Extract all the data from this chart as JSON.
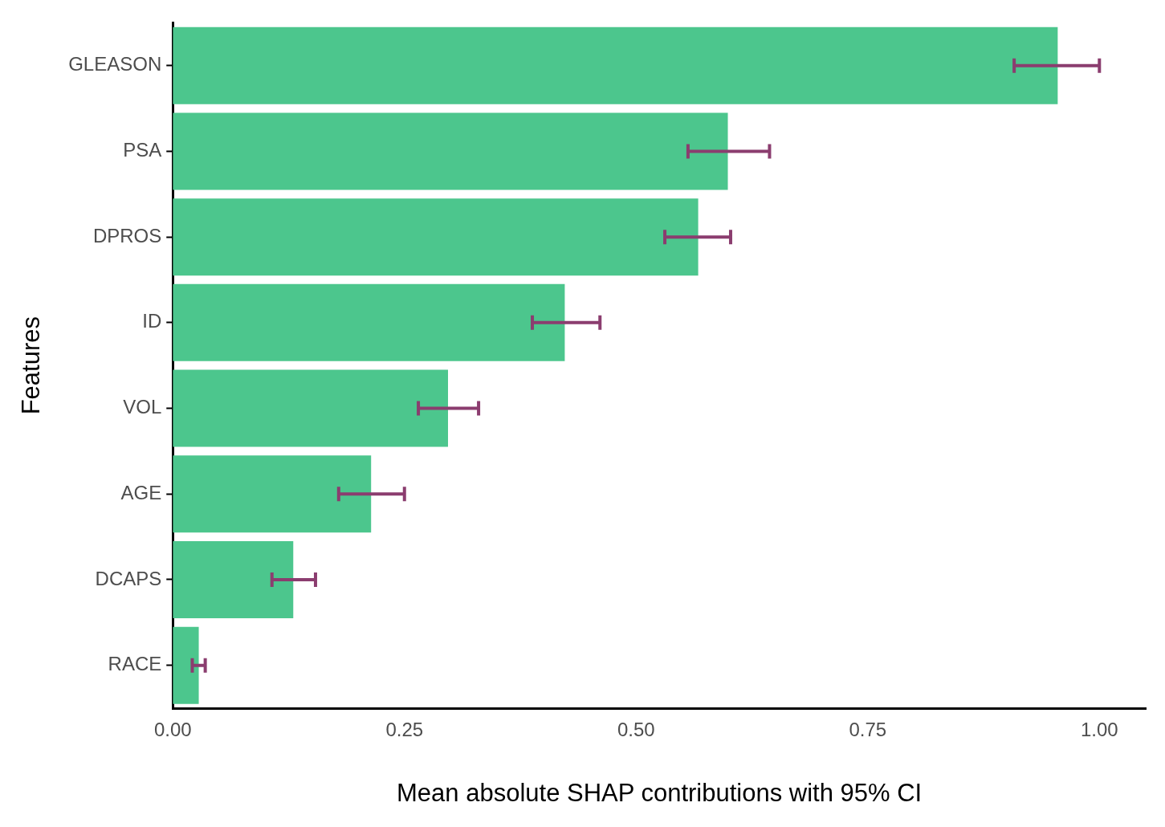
{
  "chart_data": {
    "type": "bar",
    "orientation": "horizontal",
    "xlabel": "Mean absolute SHAP contributions with 95% CI",
    "ylabel": "Features",
    "categories": [
      "GLEASON",
      "PSA",
      "DPROS",
      "ID",
      "VOL",
      "AGE",
      "DCAPS",
      "RACE"
    ],
    "values": [
      0.955,
      0.599,
      0.567,
      0.423,
      0.297,
      0.214,
      0.13,
      0.028
    ],
    "errors": [
      [
        0.908,
        1.0
      ],
      [
        0.556,
        0.644
      ],
      [
        0.531,
        0.602
      ],
      [
        0.388,
        0.461
      ],
      [
        0.265,
        0.33
      ],
      [
        0.179,
        0.25
      ],
      [
        0.107,
        0.154
      ],
      [
        0.021,
        0.035
      ]
    ],
    "color": "#4cc68d",
    "xlim": [
      0,
      1.05
    ],
    "xticks": [
      {
        "value": 0,
        "label": "0.00"
      },
      {
        "value": 0.25,
        "label": "0.25"
      },
      {
        "value": 0.5,
        "label": "0.50"
      },
      {
        "value": 0.75,
        "label": "0.75"
      },
      {
        "value": 1,
        "label": "1.00"
      }
    ],
    "grid": false,
    "legend": false
  }
}
